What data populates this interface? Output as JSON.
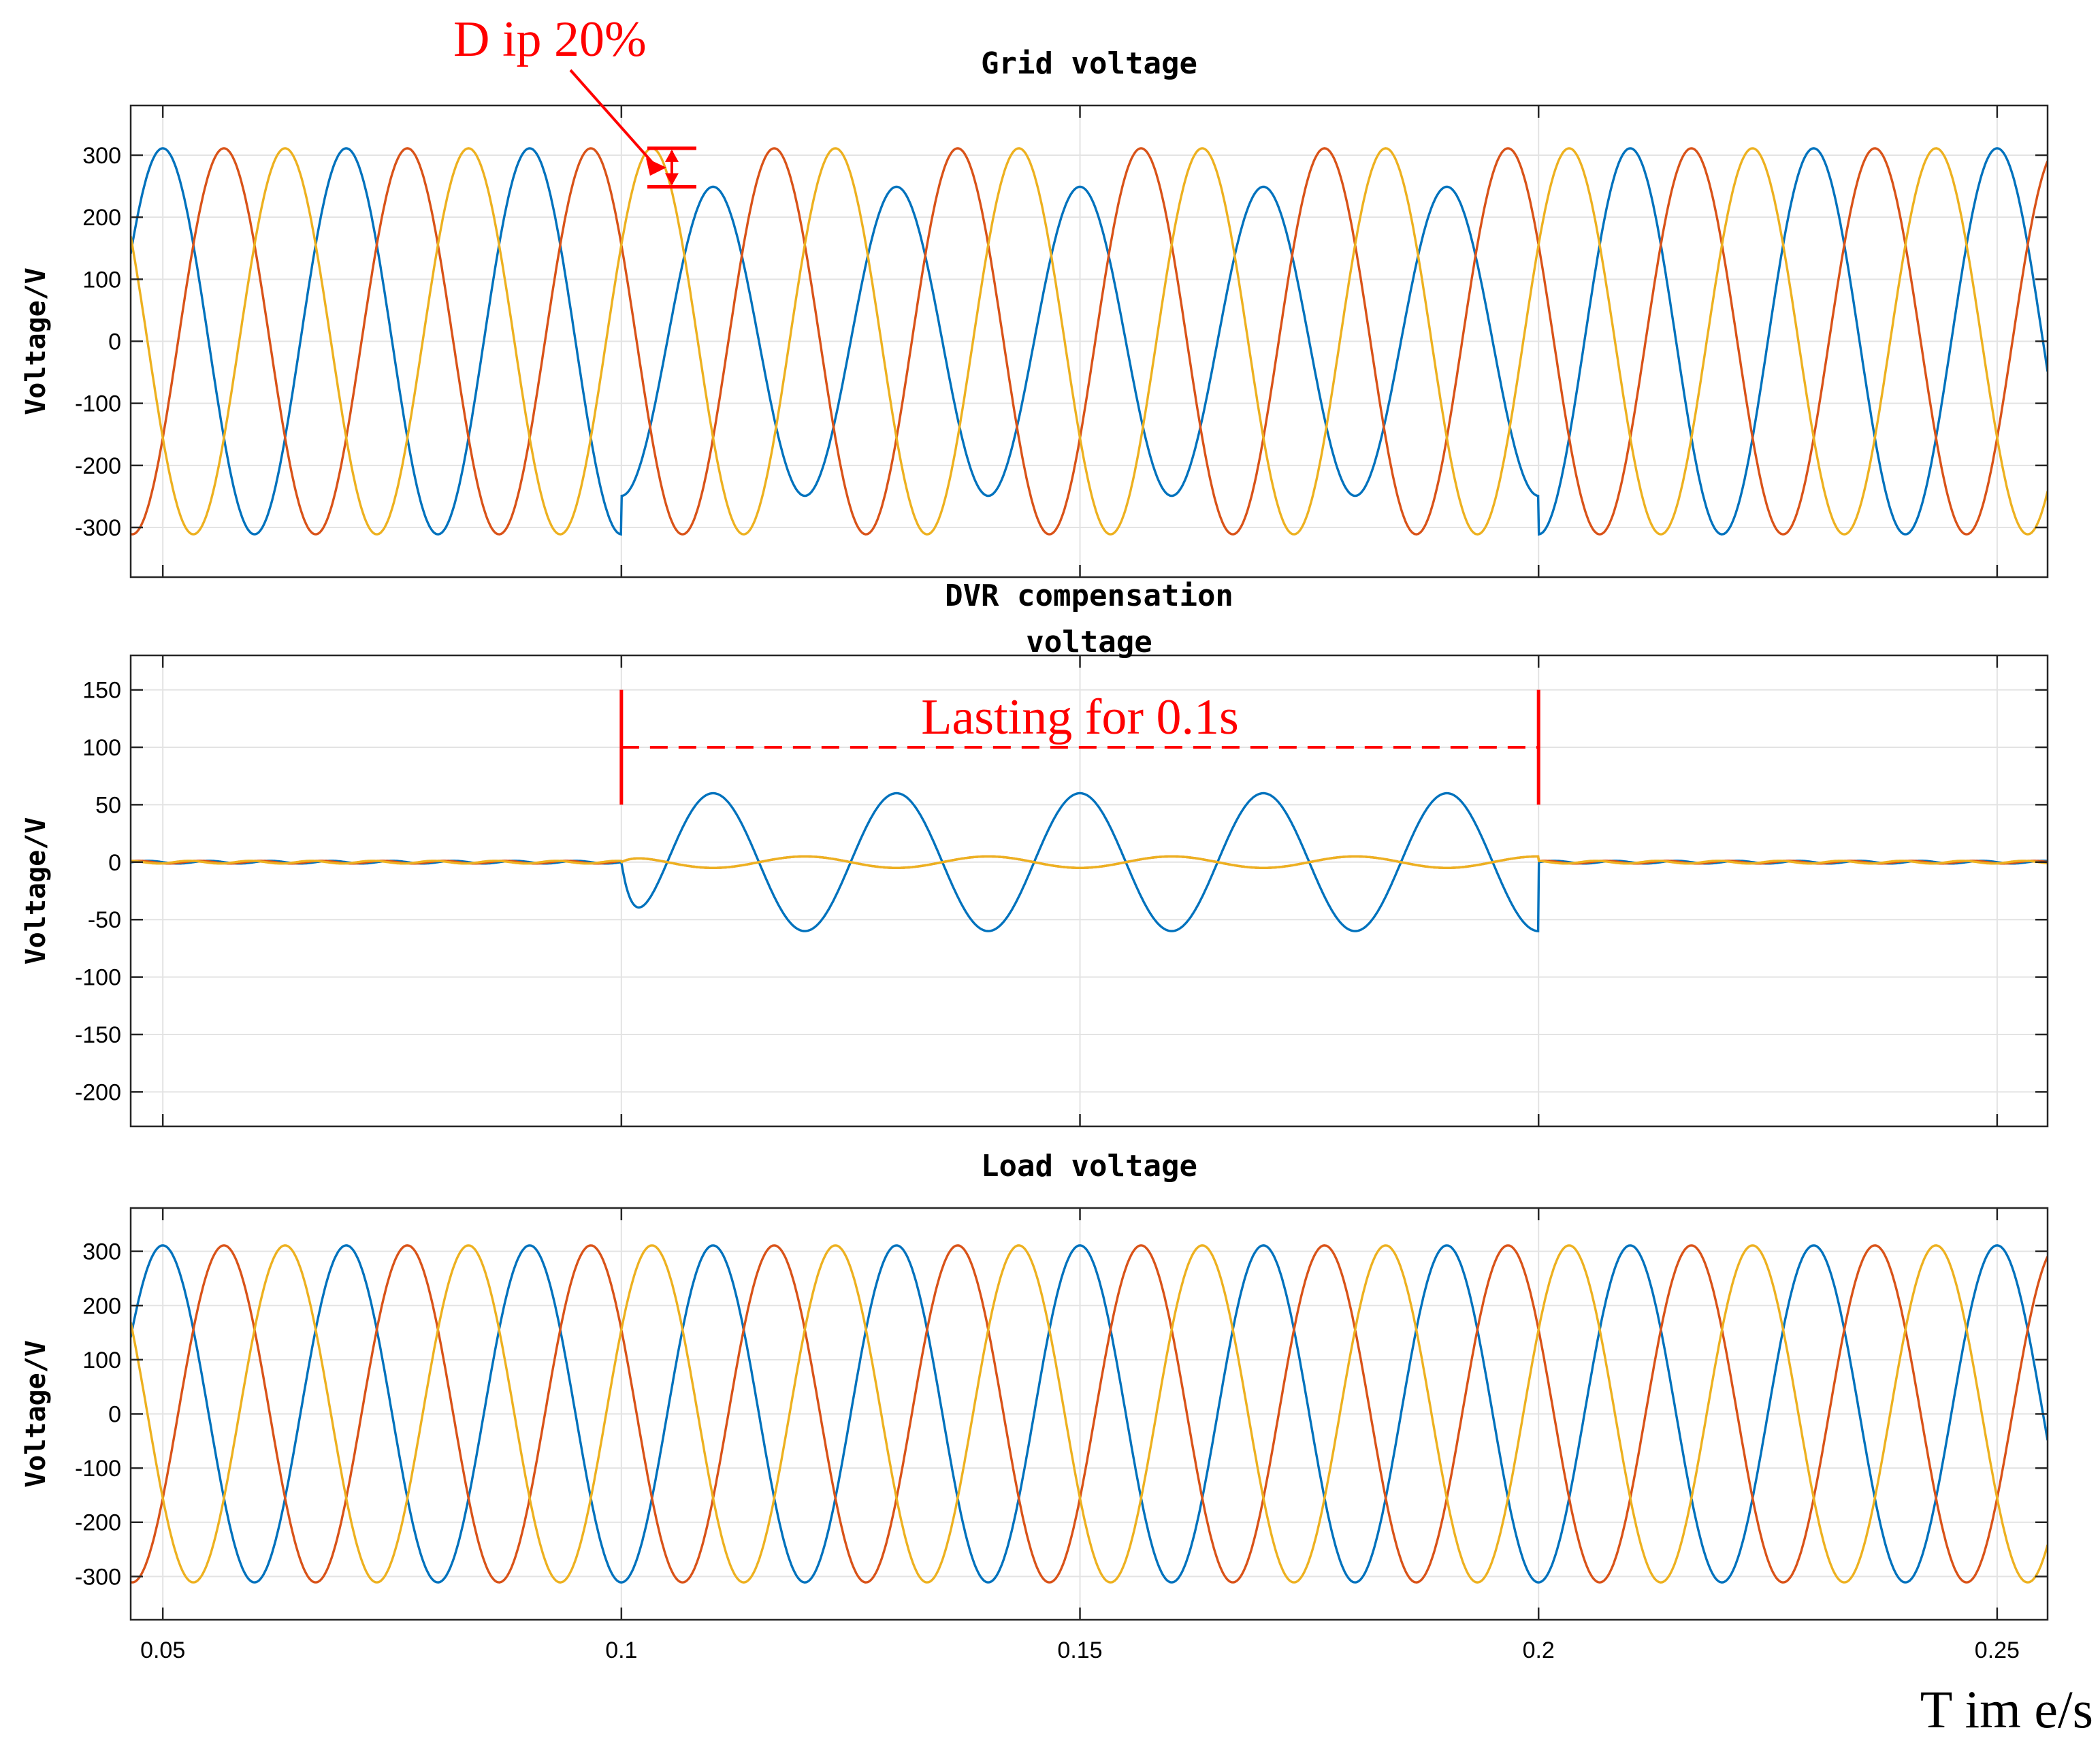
{
  "chart_data": [
    {
      "type": "line",
      "title": "Grid voltage",
      "ylabel": "Voltage/V",
      "xlabel": "",
      "xlim": [
        0.0465,
        0.2555
      ],
      "ylim": [
        -380,
        380
      ],
      "yticks": [
        300,
        200,
        100,
        0,
        -100,
        -200,
        -300
      ],
      "xticks": [
        0.05,
        0.1,
        0.15,
        0.2,
        0.25
      ],
      "grid": true,
      "frequency_hz": 50,
      "series": [
        {
          "color": "#0072BD",
          "amplitude": 311,
          "sag_amplitude": 249,
          "phase_deg": -90
        },
        {
          "color": "#D95319",
          "amplitude": 311,
          "sag_amplitude": 311,
          "phase_deg": 150
        },
        {
          "color": "#EDB120",
          "amplitude": 311,
          "sag_amplitude": 311,
          "phase_deg": 30
        }
      ],
      "sag_interval": [
        0.1,
        0.2
      ],
      "annotation": "D ip 20%"
    },
    {
      "type": "line",
      "title": "DVR compensation\nvoltage",
      "title_lines": [
        "DVR compensation",
        "voltage"
      ],
      "ylabel": "Voltage/V",
      "xlabel": "",
      "xlim": [
        0.0465,
        0.2555
      ],
      "ylim": [
        -230,
        180
      ],
      "yticks": [
        150,
        100,
        50,
        0,
        -50,
        -100,
        -150,
        -200
      ],
      "xticks": [
        0.05,
        0.1,
        0.15,
        0.2,
        0.25
      ],
      "grid": true,
      "frequency_hz": 50,
      "series": [
        {
          "color": "#0072BD",
          "amplitude": 60,
          "phase_deg": -90,
          "active_interval": [
            0.1,
            0.2
          ]
        },
        {
          "color": "#D95319",
          "amplitude": 5,
          "phase_deg": 90,
          "active_interval": [
            0.1,
            0.2
          ]
        },
        {
          "color": "#EDB120",
          "amplitude": 5,
          "phase_deg": 90,
          "active_interval": [
            0.1,
            0.2
          ]
        }
      ],
      "annotation": "Lasting for 0.1s",
      "annotation_interval": [
        0.1,
        0.2
      ],
      "annotation_level": 100
    },
    {
      "type": "line",
      "title": "Load voltage",
      "ylabel": "Voltage/V",
      "xlabel": "T im e/s",
      "xlim": [
        0.0465,
        0.2555
      ],
      "ylim": [
        -380,
        380
      ],
      "yticks": [
        300,
        200,
        100,
        0,
        -100,
        -200,
        -300
      ],
      "xticks": [
        0.05,
        0.1,
        0.15,
        0.2,
        0.25
      ],
      "xticklabels": [
        "0.05",
        "0.1",
        "0.15",
        "0.2",
        "0.25"
      ],
      "grid": true,
      "frequency_hz": 50,
      "series": [
        {
          "color": "#0072BD",
          "amplitude": 311,
          "phase_deg": -90
        },
        {
          "color": "#D95319",
          "amplitude": 311,
          "phase_deg": 150
        },
        {
          "color": "#EDB120",
          "amplitude": 311,
          "phase_deg": 30
        }
      ]
    }
  ]
}
